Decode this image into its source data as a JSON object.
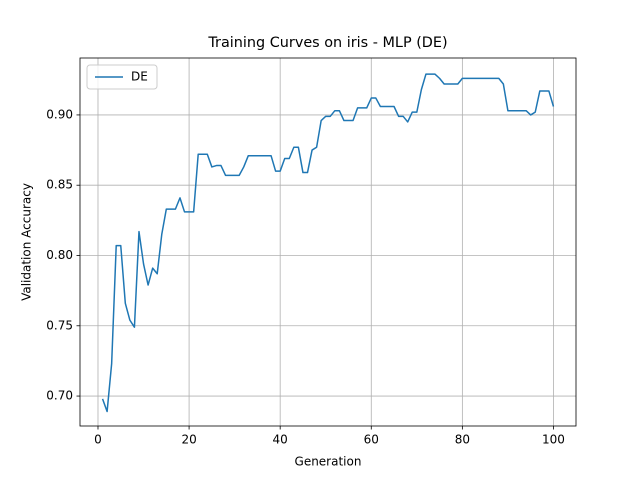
{
  "chart_data": {
    "type": "line",
    "title": "Training Curves on iris - MLP (DE)",
    "x_label": "Generation",
    "y_label": "Validation Accuracy",
    "x": [
      1,
      2,
      3,
      4,
      5,
      6,
      7,
      8,
      9,
      10,
      11,
      12,
      13,
      14,
      15,
      16,
      17,
      18,
      19,
      20,
      21,
      22,
      23,
      24,
      25,
      26,
      27,
      28,
      29,
      30,
      31,
      32,
      33,
      34,
      35,
      36,
      37,
      38,
      39,
      40,
      41,
      42,
      43,
      44,
      45,
      46,
      47,
      48,
      49,
      50,
      51,
      52,
      53,
      54,
      55,
      56,
      57,
      58,
      59,
      60,
      61,
      62,
      63,
      64,
      65,
      66,
      67,
      68,
      69,
      70,
      71,
      72,
      73,
      74,
      75,
      76,
      77,
      78,
      79,
      80,
      81,
      82,
      83,
      84,
      85,
      86,
      87,
      88,
      89,
      90,
      91,
      92,
      93,
      94,
      95,
      96,
      97,
      98,
      99,
      100
    ],
    "series": [
      {
        "name": "DE",
        "color": "#1f77b4",
        "values": [
          0.698,
          0.689,
          0.723,
          0.807,
          0.807,
          0.766,
          0.754,
          0.749,
          0.817,
          0.794,
          0.779,
          0.791,
          0.787,
          0.815,
          0.833,
          0.833,
          0.833,
          0.841,
          0.831,
          0.831,
          0.831,
          0.872,
          0.872,
          0.872,
          0.863,
          0.864,
          0.864,
          0.857,
          0.857,
          0.857,
          0.857,
          0.863,
          0.871,
          0.871,
          0.871,
          0.871,
          0.871,
          0.871,
          0.86,
          0.86,
          0.869,
          0.869,
          0.877,
          0.877,
          0.859,
          0.859,
          0.875,
          0.877,
          0.896,
          0.899,
          0.899,
          0.903,
          0.903,
          0.896,
          0.896,
          0.896,
          0.905,
          0.905,
          0.905,
          0.912,
          0.912,
          0.906,
          0.906,
          0.906,
          0.906,
          0.899,
          0.899,
          0.895,
          0.902,
          0.902,
          0.918,
          0.929,
          0.929,
          0.929,
          0.926,
          0.922,
          0.922,
          0.922,
          0.922,
          0.926,
          0.926,
          0.926,
          0.926,
          0.926,
          0.926,
          0.926,
          0.926,
          0.926,
          0.922,
          0.903,
          0.903,
          0.903,
          0.903,
          0.903,
          0.9,
          0.902,
          0.917,
          0.917,
          0.917,
          0.906
        ]
      }
    ],
    "xlim": [
      -3.95,
      104.95
    ],
    "xticks": [
      0,
      20,
      40,
      60,
      80,
      100
    ],
    "ylim": [
      0.6787,
      0.9405
    ],
    "yticks": [
      {
        "value": 0.7,
        "label": "0.70"
      },
      {
        "value": 0.75,
        "label": "0.75"
      },
      {
        "value": 0.8,
        "label": "0.80"
      },
      {
        "value": 0.85,
        "label": "0.85"
      },
      {
        "value": 0.9,
        "label": "0.90"
      }
    ],
    "grid": true,
    "legend": "upper left"
  }
}
